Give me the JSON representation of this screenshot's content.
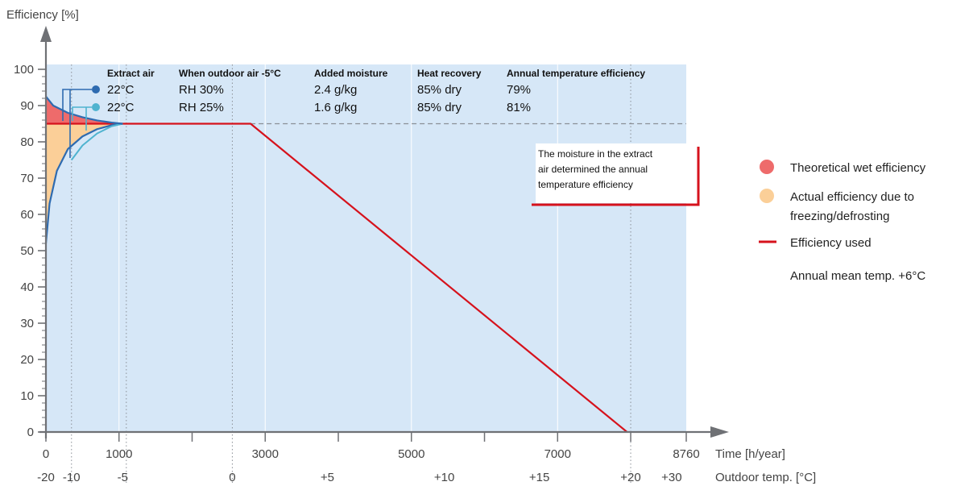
{
  "chart_data": {
    "type": "line",
    "ylabel": "Efficiency [%]",
    "xlabel": "Time [h/year]",
    "x2label": "Outdoor temp. [°C]",
    "ylim": [
      0,
      100
    ],
    "xlim": [
      0,
      8760
    ],
    "y_ticks": [
      "0",
      "10",
      "20",
      "30",
      "40",
      "50",
      "60",
      "70",
      "80",
      "90",
      "100"
    ],
    "x_ticks": [
      {
        "label": "0",
        "value": 0
      },
      {
        "label": "1000",
        "value": 1000
      },
      {
        "label": "3000",
        "value": 3000
      },
      {
        "label": "5000",
        "value": 5000
      },
      {
        "label": "7000",
        "value": 7000
      },
      {
        "label": "8760",
        "value": 8760
      }
    ],
    "minor_x_ticks": [
      2000,
      4000,
      6000,
      8000
    ],
    "temp_ticks": [
      {
        "label": "-20",
        "value": 0
      },
      {
        "label": "-10",
        "value": 350
      },
      {
        "label": "-5",
        "value": 1050
      },
      {
        "label": "0",
        "value": 2550
      },
      {
        "label": "+5",
        "value": 3850
      },
      {
        "label": "+10",
        "value": 5450
      },
      {
        "label": "+15",
        "value": 6750
      },
      {
        "label": "+20",
        "value": 8000
      },
      {
        "label": "+30",
        "value": 8560
      }
    ],
    "vertical_dotted_lines": [
      350,
      1100,
      2550,
      8000
    ],
    "reference_line": {
      "y": 85,
      "style": "dashed"
    },
    "series": [
      {
        "name": "Efficiency used",
        "color": "#d6121c",
        "x": [
          0,
          2800,
          7950
        ],
        "y": [
          85,
          85,
          0
        ]
      },
      {
        "color": "#2e6bb0",
        "x": [
          0,
          50,
          150,
          300,
          500,
          700,
          900,
          1050
        ],
        "y": [
          52,
          63,
          72,
          78,
          81.5,
          83.5,
          84.6,
          85
        ]
      },
      {
        "color": "#4fb3cf",
        "x": [
          350,
          500,
          700,
          900,
          1050
        ],
        "y": [
          75,
          79,
          82.3,
          84.3,
          85
        ]
      },
      {
        "color": "#2e6bb0",
        "x": [
          0,
          100,
          300,
          500,
          700,
          900,
          1050
        ],
        "y": [
          92.5,
          90,
          88,
          86.8,
          85.9,
          85.3,
          85
        ]
      }
    ],
    "table": {
      "headers": [
        "Extract air",
        "When outdoor air -5°C",
        "Added moisture",
        "Heat recovery",
        "Annual temperature efficiency"
      ],
      "rows": [
        {
          "marker_color": "#2e6bb0",
          "cells": [
            "22°C",
            "RH 30%",
            "2.4 g/kg",
            "85% dry",
            "79%"
          ]
        },
        {
          "marker_color": "#4fb3cf",
          "cells": [
            "22°C",
            "RH 25%",
            "1.6 g/kg",
            "85% dry",
            "81%"
          ]
        }
      ]
    },
    "annotation": [
      "The moisture in the extract",
      "air determined the annual",
      "temperature efficiency"
    ],
    "legend": {
      "placement": "right",
      "items": [
        {
          "kind": "dot",
          "color": "#ee6b6b",
          "label": "Theoretical wet efficiency"
        },
        {
          "kind": "dot",
          "color": "#fbcf98",
          "label": "Actual efficiency due to",
          "label2": "freezing/defrosting"
        },
        {
          "kind": "line",
          "color": "#d6121c",
          "label": "Efficiency used"
        },
        {
          "kind": "none",
          "label": "Annual mean temp. +6°C"
        }
      ]
    },
    "colors": {
      "plot_bg": "#d6e7f7",
      "axis": "#6f7175",
      "red": "#d6121c",
      "wet_fill": "#ee6b6b",
      "actual_fill": "#fbcf98"
    }
  }
}
